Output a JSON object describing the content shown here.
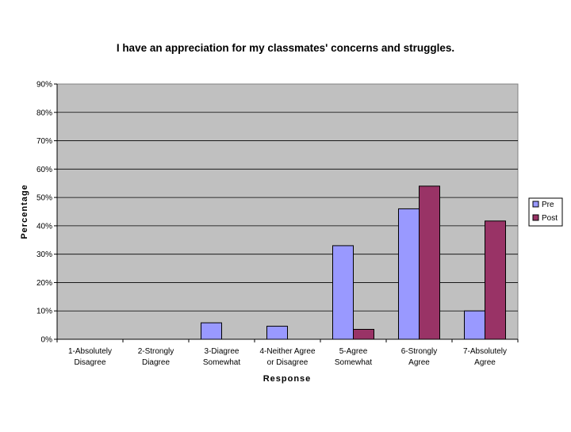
{
  "chart_data": {
    "type": "bar",
    "title": "I have an appreciation for my classmates' concerns and struggles.",
    "xlabel": "Response",
    "ylabel": "Percentage",
    "ylim": [
      0,
      90
    ],
    "ytick_step": 10,
    "ytick_labels": [
      "0%",
      "10%",
      "20%",
      "30%",
      "40%",
      "50%",
      "60%",
      "70%",
      "80%",
      "90%"
    ],
    "grid": true,
    "legend_position": "right",
    "categories": [
      [
        "1-Absolutely",
        "Disagree"
      ],
      [
        "2-Strongly",
        "Diagree"
      ],
      [
        "3-Diagree",
        "Somewhat"
      ],
      [
        "4-Neither Agree",
        "or Disagree"
      ],
      [
        "5-Agree",
        "Somewhat"
      ],
      [
        "6-Strongly",
        "Agree"
      ],
      [
        "7-Absolutely",
        "Agree"
      ]
    ],
    "series": [
      {
        "name": "Pre",
        "color": "#9999ff",
        "values": [
          0,
          0,
          5.8,
          4.6,
          33.0,
          46.0,
          10.0
        ]
      },
      {
        "name": "Post",
        "color": "#993366",
        "values": [
          0,
          0,
          0,
          0,
          3.5,
          54.0,
          41.7
        ]
      }
    ],
    "plot_background": "#c0c0c0"
  }
}
